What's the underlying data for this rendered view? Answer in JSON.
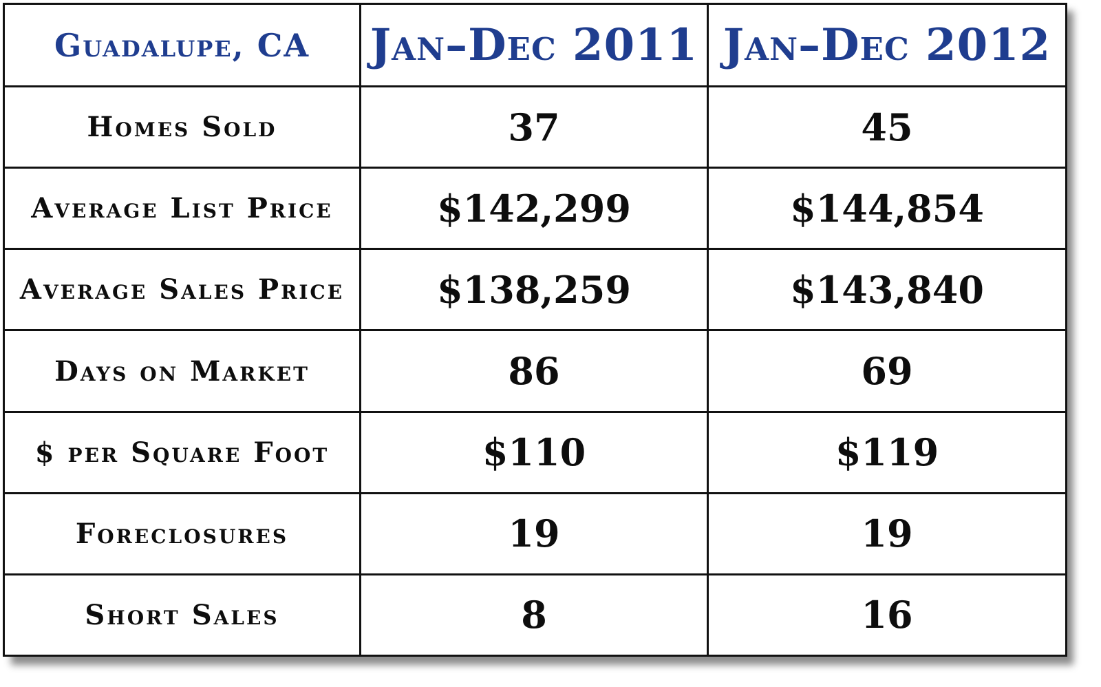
{
  "chart_data": {
    "type": "table",
    "columns": [
      "Guadalupe, CA",
      "Jan–Dec 2011",
      "Jan–Dec 2012"
    ],
    "rows": [
      {
        "label": "Homes Sold",
        "values": [
          "37",
          "45"
        ]
      },
      {
        "label": "Average List Price",
        "values": [
          "$142,299",
          "$144,854"
        ]
      },
      {
        "label": "Average Sales Price",
        "values": [
          "$138,259",
          "$143,840"
        ]
      },
      {
        "label": "Days on Market",
        "values": [
          "86",
          "69"
        ]
      },
      {
        "label": "$ per Square Foot",
        "values": [
          "$110",
          "$119"
        ]
      },
      {
        "label": "Foreclosures",
        "values": [
          "19",
          "19"
        ]
      },
      {
        "label": "Short Sales",
        "values": [
          "8",
          "16"
        ]
      }
    ],
    "colors": {
      "header_text": "#1f3d8f",
      "body_text": "#0d0d0d",
      "border": "#111111"
    }
  }
}
